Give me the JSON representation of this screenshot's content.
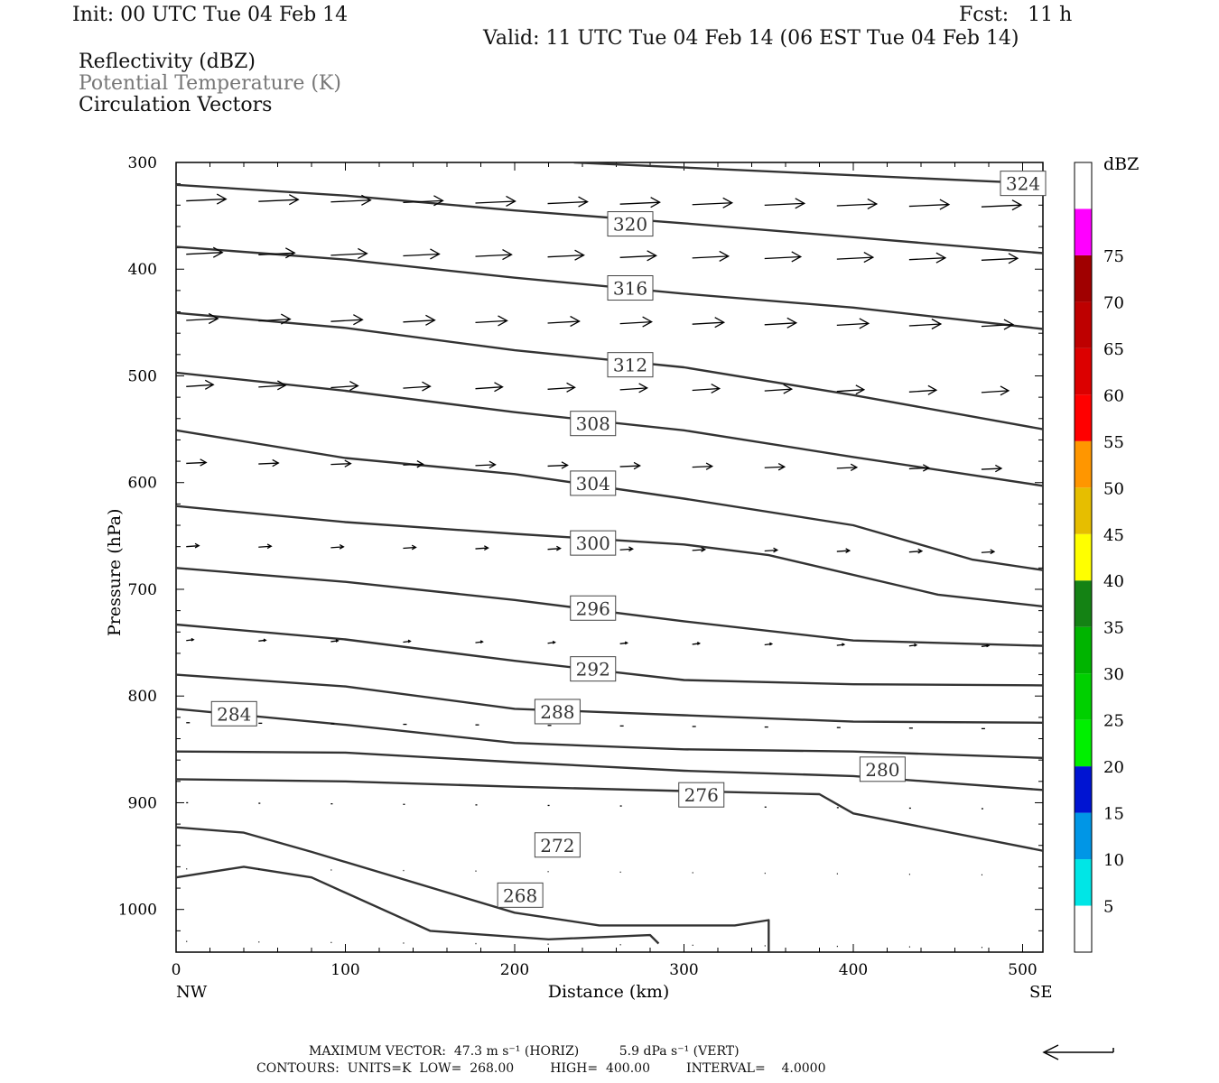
{
  "header": {
    "init": "Init: 00 UTC Tue 04 Feb 14",
    "fcst": "Fcst:   11 h",
    "valid": "Valid: 11 UTC Tue 04 Feb 14 (06 EST Tue 04 Feb 14)",
    "field1": "Reflectivity (dBZ)",
    "field2": "Potential Temperature (K)",
    "field3": "Circulation Vectors"
  },
  "axes": {
    "x_title": "Distance (km)",
    "y_title": "Pressure (hPa)",
    "left_end": "NW",
    "right_end": "SE"
  },
  "footer": {
    "line1": "MAXIMUM VECTOR:  47.3 m s⁻¹ (HORIZ)          5.9 dPa s⁻¹ (VERT)",
    "line2": "CONTOURS:  UNITS=K  LOW=  268.00         HIGH=  400.00         INTERVAL=    4.0000"
  },
  "colorbar": {
    "title": "dBZ",
    "levels": [
      {
        "label": "5",
        "color": "#00e6e6"
      },
      {
        "label": "10",
        "color": "#0096e6"
      },
      {
        "label": "15",
        "color": "#0014d2"
      },
      {
        "label": "20",
        "color": "#00f000"
      },
      {
        "label": "25",
        "color": "#00d000"
      },
      {
        "label": "30",
        "color": "#00b400"
      },
      {
        "label": "35",
        "color": "#148214"
      },
      {
        "label": "40",
        "color": "#ffff00"
      },
      {
        "label": "45",
        "color": "#e6be00"
      },
      {
        "label": "50",
        "color": "#ff9600"
      },
      {
        "label": "55",
        "color": "#ff0000"
      },
      {
        "label": "60",
        "color": "#dc0000"
      },
      {
        "label": "65",
        "color": "#be0000"
      },
      {
        "label": "70",
        "color": "#a00000"
      },
      {
        "label": "75",
        "color": "#ff00ff"
      },
      {
        "label": "",
        "color": "#9650c8"
      }
    ]
  },
  "chart_data": {
    "type": "line",
    "title": "",
    "xlabel": "Distance (km)",
    "ylabel": "Pressure (hPa)",
    "xlim": [
      0,
      512
    ],
    "ylim": [
      1040,
      300
    ],
    "x_ticks": [
      0,
      100,
      200,
      300,
      400,
      500
    ],
    "y_ticks": [
      300,
      400,
      500,
      600,
      700,
      800,
      900,
      1000
    ],
    "contour_series": [
      {
        "name": "324",
        "x": [
          235,
          400,
          512
        ],
        "y": [
          300,
          312,
          320
        ]
      },
      {
        "name": "320",
        "x": [
          0,
          100,
          200,
          300,
          400,
          512
        ],
        "y": [
          321,
          331,
          345,
          357,
          370,
          385
        ]
      },
      {
        "name": "316",
        "x": [
          0,
          100,
          200,
          300,
          400,
          512
        ],
        "y": [
          379,
          391,
          408,
          423,
          436,
          456
        ]
      },
      {
        "name": "312",
        "x": [
          0,
          100,
          200,
          300,
          400,
          512
        ],
        "y": [
          441,
          455,
          476,
          492,
          518,
          550
        ]
      },
      {
        "name": "308",
        "x": [
          0,
          100,
          200,
          300,
          400,
          512
        ],
        "y": [
          497,
          514,
          534,
          551,
          576,
          603
        ]
      },
      {
        "name": "304",
        "x": [
          0,
          100,
          200,
          300,
          400,
          470,
          512
        ],
        "y": [
          551,
          577,
          592,
          615,
          640,
          672,
          682
        ]
      },
      {
        "name": "300",
        "x": [
          0,
          100,
          200,
          300,
          350,
          450,
          512
        ],
        "y": [
          622,
          637,
          648,
          658,
          668,
          705,
          716
        ]
      },
      {
        "name": "296",
        "x": [
          0,
          100,
          200,
          300,
          400,
          512
        ],
        "y": [
          680,
          693,
          710,
          730,
          748,
          753
        ]
      },
      {
        "name": "292",
        "x": [
          0,
          100,
          200,
          300,
          400,
          512
        ],
        "y": [
          733,
          747,
          767,
          785,
          789,
          790
        ]
      },
      {
        "name": "288",
        "x": [
          0,
          100,
          200,
          300,
          400,
          512
        ],
        "y": [
          780,
          791,
          812,
          818,
          824,
          825
        ]
      },
      {
        "name": "284",
        "x": [
          0,
          100,
          200,
          300,
          400,
          512
        ],
        "y": [
          812,
          827,
          844,
          850,
          852,
          858
        ]
      },
      {
        "name": "280",
        "x": [
          0,
          100,
          200,
          300,
          400,
          512
        ],
        "y": [
          852,
          853,
          862,
          870,
          875,
          888
        ]
      },
      {
        "name": "276",
        "x": [
          0,
          100,
          200,
          300,
          380,
          400,
          512
        ],
        "y": [
          878,
          880,
          885,
          889,
          892,
          910,
          945
        ]
      },
      {
        "name": "272",
        "x": [
          0,
          40,
          80,
          200,
          250,
          330,
          350,
          350
        ],
        "y": [
          923,
          928,
          946,
          1003,
          1015,
          1015,
          1010,
          1040
        ]
      },
      {
        "name": "268",
        "x": [
          0,
          40,
          80,
          150,
          220,
          280,
          285
        ],
        "y": [
          970,
          960,
          970,
          1020,
          1028,
          1024,
          1032
        ]
      }
    ],
    "labels": [
      {
        "text": "324",
        "x": 488,
        "y": 320
      },
      {
        "text": "320",
        "x": 256,
        "y": 358
      },
      {
        "text": "316",
        "x": 256,
        "y": 418
      },
      {
        "text": "312",
        "x": 256,
        "y": 490
      },
      {
        "text": "308",
        "x": 234,
        "y": 545
      },
      {
        "text": "304",
        "x": 234,
        "y": 601
      },
      {
        "text": "300",
        "x": 234,
        "y": 657
      },
      {
        "text": "296",
        "x": 234,
        "y": 718
      },
      {
        "text": "292",
        "x": 234,
        "y": 775
      },
      {
        "text": "288",
        "x": 213,
        "y": 815
      },
      {
        "text": "284",
        "x": 22,
        "y": 817
      },
      {
        "text": "280",
        "x": 405,
        "y": 869
      },
      {
        "text": "276",
        "x": 298,
        "y": 893
      },
      {
        "text": "272",
        "x": 213,
        "y": 940
      },
      {
        "text": "268",
        "x": 191,
        "y": 987
      }
    ],
    "vectors": [
      {
        "y": 336,
        "u": 44,
        "v": -2
      },
      {
        "y": 386,
        "u": 40,
        "v": -2
      },
      {
        "y": 448,
        "u": 35,
        "v": -2
      },
      {
        "y": 510,
        "u": 30,
        "v": -2
      },
      {
        "y": 582,
        "u": 22,
        "v": -1
      },
      {
        "y": 660,
        "u": 14,
        "v": -1
      },
      {
        "y": 748,
        "u": 8,
        "v": -1
      },
      {
        "y": 825,
        "u": 4,
        "v": 0
      },
      {
        "y": 900,
        "u": 2,
        "v": 0
      },
      {
        "y": 962,
        "u": 1,
        "v": 0
      },
      {
        "y": 1030,
        "u": 1,
        "v": 0
      }
    ]
  }
}
